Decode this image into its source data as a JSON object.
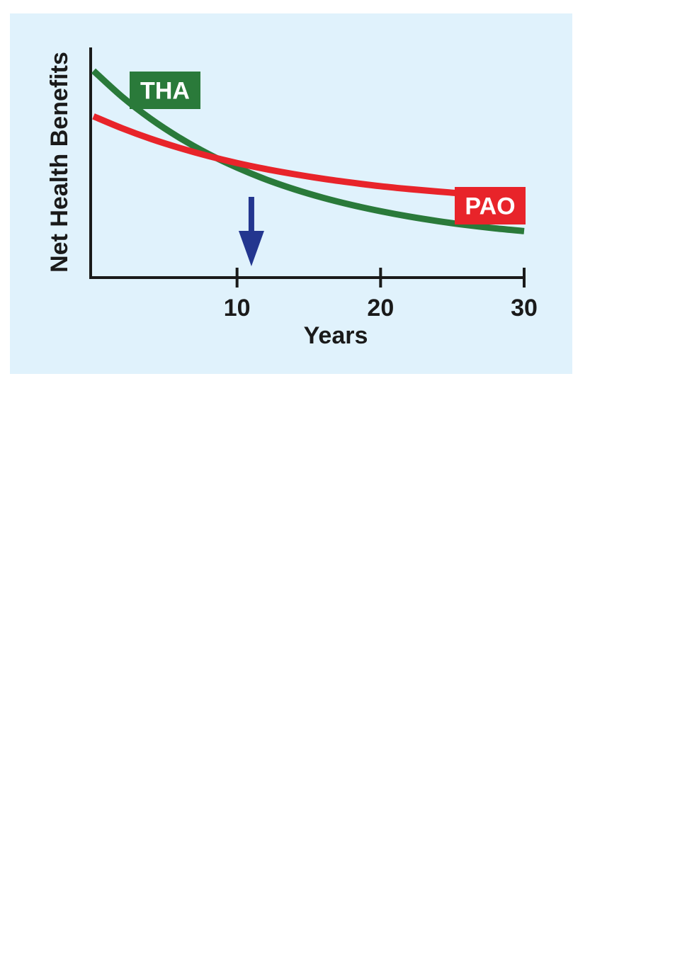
{
  "chart_data": {
    "type": "line",
    "title": "",
    "xlabel": "Years",
    "ylabel": "Net Health Benefits",
    "xlim": [
      0,
      30
    ],
    "xticks": [
      10,
      20,
      30
    ],
    "grid": false,
    "series": [
      {
        "name": "THA",
        "color": "#2a7a3a",
        "x": [
          0,
          2,
          4,
          6,
          8,
          10,
          12,
          14,
          16,
          18,
          20,
          22,
          24,
          26,
          28,
          30
        ],
        "y": [
          100,
          87.4,
          76.7,
          67.6,
          59.8,
          53.2,
          47.5,
          42.7,
          38.6,
          35.1,
          32.1,
          29.5,
          27.3,
          25.4,
          23.8,
          22.5
        ]
      },
      {
        "name": "PAO",
        "color": "#e8242a",
        "x": [
          0,
          2,
          4,
          6,
          8,
          10,
          12,
          14,
          16,
          18,
          20,
          22,
          24,
          26,
          28,
          30
        ],
        "y": [
          78,
          72.2,
          67.1,
          62.7,
          58.8,
          55.4,
          52.5,
          50.0,
          47.8,
          45.9,
          44.2,
          42.8,
          41.6,
          40.5,
          39.6,
          38.8
        ]
      }
    ],
    "annotations": [
      {
        "type": "arrow",
        "x": 11,
        "direction": "down",
        "color": "#23368f"
      }
    ]
  }
}
